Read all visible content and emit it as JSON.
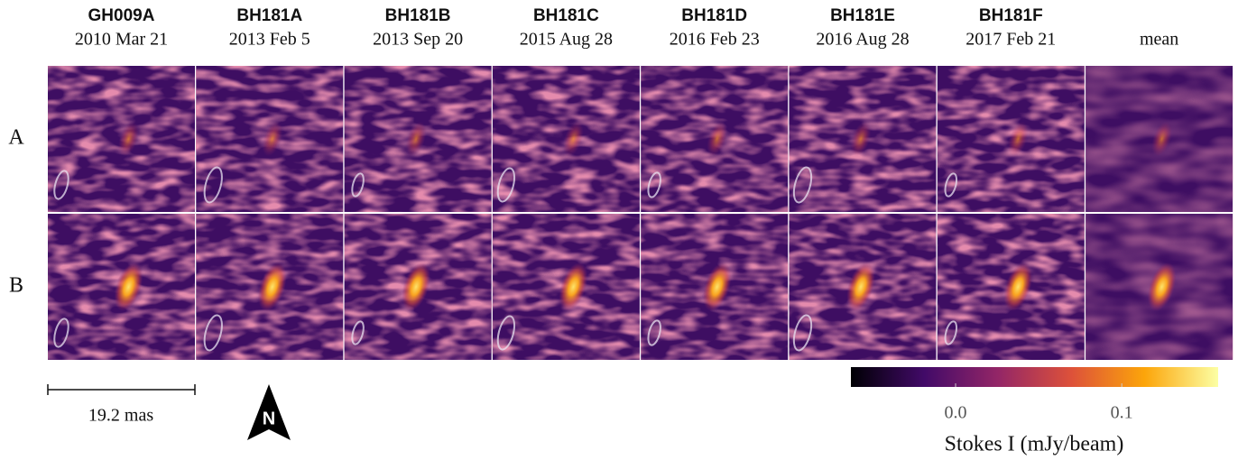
{
  "columns": [
    {
      "name": "GH009A",
      "date": "2010 Mar 21"
    },
    {
      "name": "BH181A",
      "date": "2013 Feb 5"
    },
    {
      "name": "BH181B",
      "date": "2013 Sep 20"
    },
    {
      "name": "BH181C",
      "date": "2015 Aug 28"
    },
    {
      "name": "BH181D",
      "date": "2016 Feb 23"
    },
    {
      "name": "BH181E",
      "date": "2016 Aug 28"
    },
    {
      "name": "BH181F",
      "date": "2017 Feb 21"
    }
  ],
  "mean_label": "mean",
  "rows": [
    "A",
    "B"
  ],
  "scale_bar": "19.2 mas",
  "north": "N",
  "colorbar": {
    "label": "Stokes I (mJy/beam)",
    "lim": [
      -0.063,
      0.158
    ],
    "ticks": [
      {
        "value": 0,
        "label": "0.0"
      },
      0.1
    ]
  }
}
